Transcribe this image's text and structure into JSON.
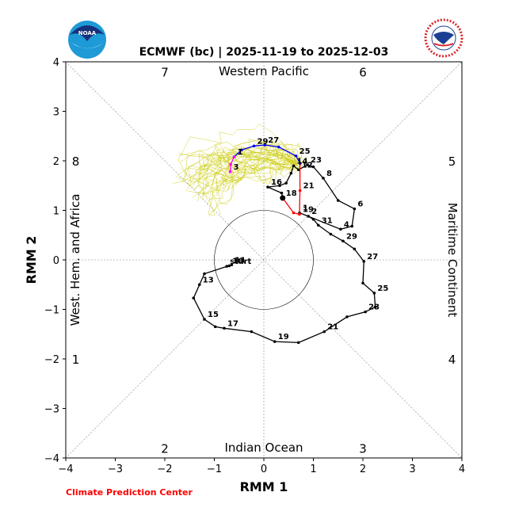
{
  "chart_data": {
    "type": "line",
    "title": "ECMWF (bc) | 2025-11-19 to 2025-12-03",
    "xlabel": "RMM 1",
    "ylabel": "RMM 2",
    "xlim": [
      -4,
      4
    ],
    "ylim": [
      -4,
      4
    ],
    "xticks": [
      "−4",
      "−3",
      "−2",
      "−1",
      "0",
      "1",
      "2",
      "3",
      "4"
    ],
    "yticks": [
      "−4",
      "−3",
      "−2",
      "−1",
      "0",
      "1",
      "2",
      "3",
      "4"
    ],
    "region_labels": {
      "top": "Western Pacific",
      "bottom": "Indian Ocean",
      "left": "West. Hem. and Africa",
      "right": "Maritime Continent"
    },
    "phase_numbers": [
      {
        "label": "1",
        "x": -3.8,
        "y": -2.0
      },
      {
        "label": "2",
        "x": -2.0,
        "y": -3.8
      },
      {
        "label": "3",
        "x": 2.0,
        "y": -3.8
      },
      {
        "label": "4",
        "x": 3.8,
        "y": -2.0
      },
      {
        "label": "5",
        "x": 3.8,
        "y": 2.0
      },
      {
        "label": "6",
        "x": 2.0,
        "y": 3.8
      },
      {
        "label": "7",
        "x": -2.0,
        "y": 3.8
      },
      {
        "label": "8",
        "x": -3.8,
        "y": 2.0
      }
    ],
    "observed": {
      "color": "#000000",
      "points": [
        {
          "x": -0.75,
          "y": -0.13,
          "label": "start"
        },
        {
          "x": -0.7,
          "y": -0.12,
          "label": "10"
        },
        {
          "x": -0.65,
          "y": -0.1,
          "label": "11"
        },
        {
          "x": -1.2,
          "y": -0.28,
          "label": ""
        },
        {
          "x": -1.3,
          "y": -0.5,
          "label": "13"
        },
        {
          "x": -1.42,
          "y": -0.77,
          "label": ""
        },
        {
          "x": -1.2,
          "y": -1.2,
          "label": "15"
        },
        {
          "x": -0.98,
          "y": -1.35,
          "label": ""
        },
        {
          "x": -0.8,
          "y": -1.38,
          "label": "17"
        },
        {
          "x": -0.25,
          "y": -1.45,
          "label": ""
        },
        {
          "x": 0.22,
          "y": -1.65,
          "label": "19"
        },
        {
          "x": 0.7,
          "y": -1.67,
          "label": ""
        },
        {
          "x": 1.22,
          "y": -1.45,
          "label": "21"
        },
        {
          "x": 1.68,
          "y": -1.15,
          "label": ""
        },
        {
          "x": 2.05,
          "y": -1.05,
          "label": "23"
        },
        {
          "x": 2.25,
          "y": -0.95,
          "label": ""
        },
        {
          "x": 2.23,
          "y": -0.67,
          "label": "25"
        },
        {
          "x": 2.0,
          "y": -0.47,
          "label": ""
        },
        {
          "x": 2.02,
          "y": -0.03,
          "label": "27"
        },
        {
          "x": 1.83,
          "y": 0.22,
          "label": ""
        },
        {
          "x": 1.6,
          "y": 0.38,
          "label": "29"
        },
        {
          "x": 1.35,
          "y": 0.52,
          "label": ""
        },
        {
          "x": 1.1,
          "y": 0.7,
          "label": "31"
        },
        {
          "x": 1.0,
          "y": 0.82,
          "label": ""
        },
        {
          "x": 0.9,
          "y": 0.88,
          "label": "2"
        },
        {
          "x": 0.72,
          "y": 0.95,
          "label": "1"
        },
        {
          "x": 1.55,
          "y": 0.62,
          "label": "4"
        },
        {
          "x": 1.78,
          "y": 0.68,
          "label": ""
        },
        {
          "x": 1.83,
          "y": 1.03,
          "label": "6"
        },
        {
          "x": 1.5,
          "y": 1.2,
          "label": ""
        },
        {
          "x": 1.2,
          "y": 1.65,
          "label": "8"
        },
        {
          "x": 1.0,
          "y": 1.88,
          "label": ""
        },
        {
          "x": 0.88,
          "y": 1.92,
          "label": "23"
        },
        {
          "x": 0.7,
          "y": 1.82,
          "label": "12"
        },
        {
          "x": 0.6,
          "y": 1.9,
          "label": "14"
        },
        {
          "x": 0.55,
          "y": 1.75,
          "label": ""
        },
        {
          "x": 0.45,
          "y": 1.55,
          "label": ""
        },
        {
          "x": 0.32,
          "y": 1.5,
          "label": ""
        },
        {
          "x": 0.08,
          "y": 1.47,
          "label": "16"
        },
        {
          "x": 0.36,
          "y": 1.35,
          "label": ""
        },
        {
          "x": 0.38,
          "y": 1.25,
          "label": "18"
        }
      ]
    },
    "forecast_red": {
      "color": "#ff0000",
      "points": [
        {
          "x": 0.38,
          "y": 1.25
        },
        {
          "x": 0.6,
          "y": 0.95
        },
        {
          "x": 0.72,
          "y": 0.92,
          "label": "19"
        },
        {
          "x": 0.73,
          "y": 1.4,
          "label": "21"
        },
        {
          "x": 0.73,
          "y": 1.95
        }
      ]
    },
    "forecast_blue": {
      "color": "#0000ff",
      "points": [
        {
          "x": 0.73,
          "y": 1.95
        },
        {
          "x": 0.65,
          "y": 2.1,
          "label": "25"
        },
        {
          "x": 0.3,
          "y": 2.28
        },
        {
          "x": 0.02,
          "y": 2.32,
          "label": "27"
        },
        {
          "x": -0.2,
          "y": 2.3,
          "label": "29"
        },
        {
          "x": -0.45,
          "y": 2.22
        },
        {
          "x": -0.6,
          "y": 2.08,
          "label": "1"
        }
      ]
    },
    "forecast_magenta": {
      "color": "#ff00ff",
      "points": [
        {
          "x": -0.6,
          "y": 2.08
        },
        {
          "x": -0.67,
          "y": 1.93
        },
        {
          "x": -0.68,
          "y": 1.78,
          "label": "3"
        }
      ]
    },
    "ensemble_color": "#c8c800",
    "footer": "Climate Prediction Center"
  }
}
